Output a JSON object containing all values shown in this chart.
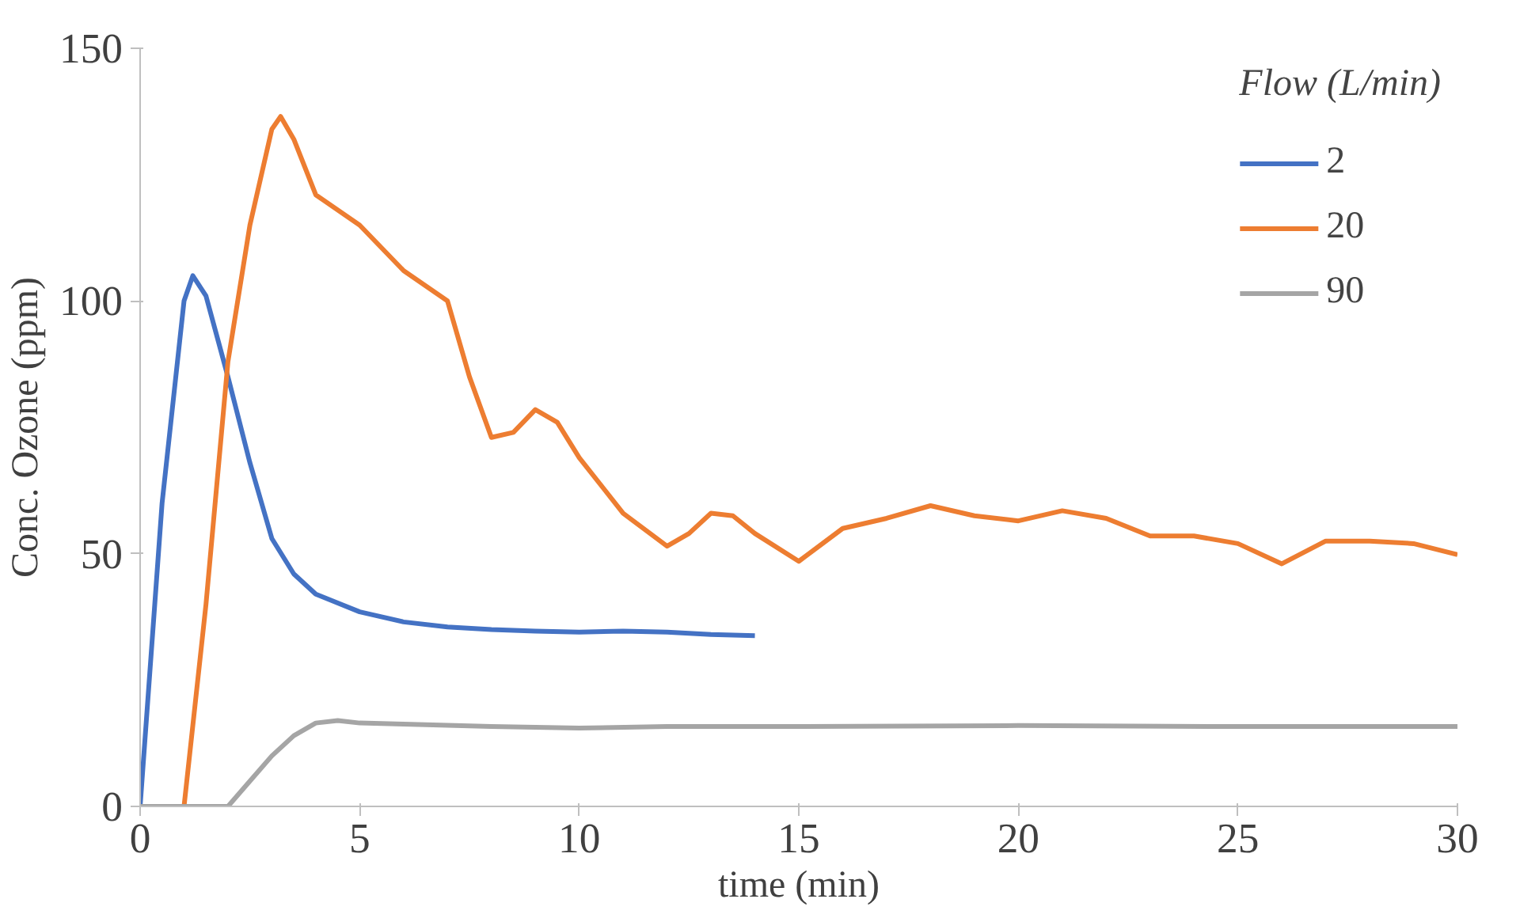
{
  "chart_data": {
    "type": "line",
    "xlabel": "time (min)",
    "ylabel": "Conc. Ozone (ppm)",
    "legend_title": "Flow (L/min)",
    "legend": "top right",
    "grid": false,
    "xlim": [
      0,
      30
    ],
    "ylim": [
      0,
      150
    ],
    "xticks": [
      0,
      5,
      10,
      15,
      20,
      25,
      30
    ],
    "yticks": [
      0,
      50,
      100,
      150
    ],
    "series": [
      {
        "name": "2",
        "color": "#4472c4",
        "x": [
          0,
          0.5,
          1,
          1.2,
          1.5,
          2,
          2.5,
          3,
          3.5,
          4,
          5,
          6,
          7,
          8,
          9,
          10,
          11,
          12,
          13,
          14
        ],
        "values": [
          0,
          60,
          100,
          105,
          101,
          85,
          68,
          53,
          46,
          42,
          38.5,
          36.5,
          35.5,
          35,
          34.7,
          34.5,
          34.7,
          34.5,
          34,
          33.8
        ]
      },
      {
        "name": "20",
        "color": "#ed7d31",
        "x": [
          0,
          1,
          1.5,
          2,
          2.5,
          3,
          3.2,
          3.5,
          4,
          5,
          6,
          7,
          7.5,
          8,
          8.5,
          9,
          9.5,
          10,
          11,
          12,
          12.5,
          13,
          13.5,
          14,
          15,
          16,
          17,
          18,
          19,
          20,
          21,
          22,
          23,
          24,
          25,
          26,
          27,
          28,
          29,
          30
        ],
        "values": [
          0,
          0,
          40,
          88,
          115,
          134,
          136.5,
          132,
          121,
          115,
          106,
          100,
          85,
          73,
          74,
          78.5,
          76,
          69,
          58,
          51.5,
          54,
          58,
          57.5,
          54,
          48.5,
          55,
          57,
          59.5,
          57.5,
          56.5,
          58.5,
          57,
          53.5,
          53.5,
          52,
          48,
          52.5,
          52.5,
          52,
          49.8
        ]
      },
      {
        "name": "90",
        "color": "#a5a5a5",
        "x": [
          0,
          2,
          2.5,
          3,
          3.5,
          4,
          4.5,
          5,
          6,
          8,
          10,
          12,
          15,
          20,
          25,
          30
        ],
        "values": [
          0,
          0,
          5,
          10,
          14,
          16.5,
          17,
          16.5,
          16.3,
          15.8,
          15.5,
          15.8,
          15.8,
          16,
          15.8,
          15.8
        ]
      }
    ]
  }
}
